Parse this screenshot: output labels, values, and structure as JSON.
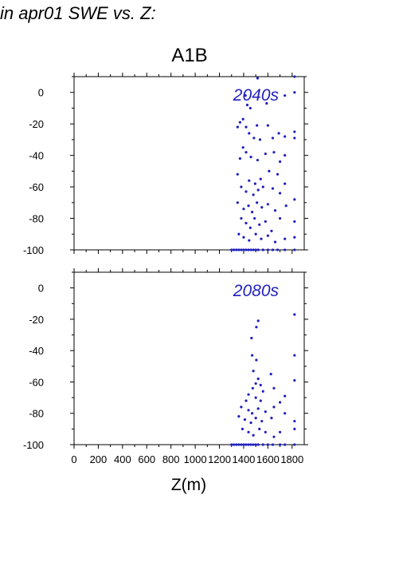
{
  "page": {
    "heading": "in apr01 SWE vs. Z:",
    "scenario": "A1B",
    "xlabel": "Z(m)"
  },
  "colors": {
    "points": "#1f1fbf",
    "axes": "#000000"
  },
  "chart_data": [
    {
      "type": "scatter",
      "annotation": "2040s",
      "xlim": [
        0,
        1900
      ],
      "ylim": [
        -100,
        10
      ],
      "xticks": [
        0,
        200,
        400,
        600,
        800,
        1000,
        1200,
        1400,
        1600,
        1800
      ],
      "yticks": [
        0,
        -20,
        -40,
        -60,
        -80,
        -100
      ],
      "grid": false,
      "points": [
        [
          1820,
          10
        ],
        [
          1515,
          9
        ],
        [
          1820,
          0
        ],
        [
          1415,
          -2
        ],
        [
          1740,
          -2
        ],
        [
          1430,
          -8
        ],
        [
          1455,
          -10
        ],
        [
          1590,
          -7
        ],
        [
          1370,
          -19
        ],
        [
          1395,
          -17
        ],
        [
          1420,
          -22
        ],
        [
          1350,
          -22
        ],
        [
          1445,
          -26
        ],
        [
          1510,
          -21
        ],
        [
          1485,
          -29
        ],
        [
          1535,
          -30
        ],
        [
          1600,
          -21
        ],
        [
          1640,
          -29
        ],
        [
          1690,
          -26
        ],
        [
          1740,
          -28
        ],
        [
          1820,
          -25
        ],
        [
          1820,
          -29
        ],
        [
          1395,
          -35
        ],
        [
          1420,
          -38
        ],
        [
          1460,
          -41
        ],
        [
          1515,
          -43
        ],
        [
          1370,
          -42
        ],
        [
          1580,
          -39
        ],
        [
          1650,
          -38
        ],
        [
          1700,
          -44
        ],
        [
          1740,
          -40
        ],
        [
          1350,
          -52
        ],
        [
          1445,
          -56
        ],
        [
          1495,
          -58
        ],
        [
          1540,
          -55
        ],
        [
          1610,
          -50
        ],
        [
          1680,
          -52
        ],
        [
          1740,
          -58
        ],
        [
          1380,
          -60
        ],
        [
          1420,
          -63
        ],
        [
          1480,
          -65
        ],
        [
          1520,
          -62
        ],
        [
          1560,
          -60
        ],
        [
          1640,
          -61
        ],
        [
          1700,
          -64
        ],
        [
          1820,
          -68
        ],
        [
          1350,
          -70
        ],
        [
          1400,
          -74
        ],
        [
          1440,
          -72
        ],
        [
          1470,
          -76
        ],
        [
          1510,
          -70
        ],
        [
          1550,
          -73
        ],
        [
          1600,
          -71
        ],
        [
          1660,
          -75
        ],
        [
          1750,
          -72
        ],
        [
          1380,
          -80
        ],
        [
          1420,
          -83
        ],
        [
          1455,
          -86
        ],
        [
          1490,
          -80
        ],
        [
          1530,
          -84
        ],
        [
          1580,
          -82
        ],
        [
          1630,
          -88
        ],
        [
          1700,
          -80
        ],
        [
          1820,
          -82
        ],
        [
          1360,
          -90
        ],
        [
          1400,
          -92
        ],
        [
          1445,
          -94
        ],
        [
          1500,
          -90
        ],
        [
          1545,
          -93
        ],
        [
          1600,
          -91
        ],
        [
          1660,
          -95
        ],
        [
          1740,
          -93
        ],
        [
          1820,
          -92
        ],
        [
          1300,
          -100
        ],
        [
          1320,
          -100
        ],
        [
          1340,
          -100
        ],
        [
          1360,
          -100
        ],
        [
          1380,
          -100
        ],
        [
          1400,
          -100
        ],
        [
          1420,
          -100
        ],
        [
          1440,
          -100
        ],
        [
          1460,
          -100
        ],
        [
          1480,
          -100
        ],
        [
          1500,
          -100
        ],
        [
          1520,
          -100
        ],
        [
          1560,
          -100
        ],
        [
          1600,
          -100
        ],
        [
          1640,
          -100
        ],
        [
          1680,
          -100
        ],
        [
          1740,
          -100
        ],
        [
          1820,
          -100
        ]
      ]
    },
    {
      "type": "scatter",
      "annotation": "2080s",
      "xlim": [
        0,
        1900
      ],
      "ylim": [
        -100,
        10
      ],
      "xticks": [
        0,
        200,
        400,
        600,
        800,
        1000,
        1200,
        1400,
        1600,
        1800
      ],
      "yticks": [
        0,
        -20,
        -40,
        -60,
        -80,
        -100
      ],
      "grid": false,
      "points": [
        [
          1820,
          -17
        ],
        [
          1520,
          -21
        ],
        [
          1505,
          -25
        ],
        [
          1465,
          -32
        ],
        [
          1820,
          -43
        ],
        [
          1470,
          -43
        ],
        [
          1505,
          -46
        ],
        [
          1480,
          -53
        ],
        [
          1625,
          -55
        ],
        [
          1520,
          -58
        ],
        [
          1820,
          -59
        ],
        [
          1500,
          -61
        ],
        [
          1540,
          -62
        ],
        [
          1475,
          -64
        ],
        [
          1560,
          -66
        ],
        [
          1440,
          -68
        ],
        [
          1650,
          -64
        ],
        [
          1420,
          -72
        ],
        [
          1500,
          -70
        ],
        [
          1540,
          -72
        ],
        [
          1740,
          -69
        ],
        [
          1380,
          -76
        ],
        [
          1440,
          -78
        ],
        [
          1470,
          -80
        ],
        [
          1520,
          -77
        ],
        [
          1580,
          -79
        ],
        [
          1650,
          -76
        ],
        [
          1700,
          -73
        ],
        [
          1360,
          -82
        ],
        [
          1410,
          -84
        ],
        [
          1460,
          -86
        ],
        [
          1500,
          -83
        ],
        [
          1550,
          -85
        ],
        [
          1630,
          -83
        ],
        [
          1740,
          -80
        ],
        [
          1820,
          -85
        ],
        [
          1390,
          -90
        ],
        [
          1440,
          -92
        ],
        [
          1480,
          -94
        ],
        [
          1530,
          -90
        ],
        [
          1580,
          -92
        ],
        [
          1650,
          -95
        ],
        [
          1700,
          -92
        ],
        [
          1820,
          -90
        ],
        [
          1300,
          -100
        ],
        [
          1320,
          -100
        ],
        [
          1340,
          -100
        ],
        [
          1360,
          -100
        ],
        [
          1380,
          -100
        ],
        [
          1400,
          -100
        ],
        [
          1420,
          -100
        ],
        [
          1440,
          -100
        ],
        [
          1460,
          -100
        ],
        [
          1480,
          -100
        ],
        [
          1500,
          -100
        ],
        [
          1520,
          -100
        ],
        [
          1560,
          -100
        ],
        [
          1600,
          -100
        ],
        [
          1640,
          -100
        ],
        [
          1700,
          -100
        ],
        [
          1740,
          -100
        ],
        [
          1820,
          -100
        ]
      ]
    }
  ]
}
